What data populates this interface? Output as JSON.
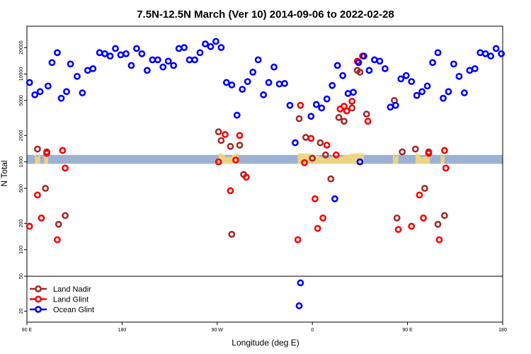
{
  "chart_data": {
    "type": "scatter",
    "title": "7.5N-12.5N March (Ver 10)   2014-09-06 to 2022-02-28",
    "xlabel": "Longitude (deg E)",
    "ylabel": "N Total",
    "y_scale": "log",
    "ylim": [
      15,
      35000
    ],
    "xlim": [
      0,
      360
    ],
    "x_ticks": [
      {
        "pos": 0,
        "label": "90 E"
      },
      {
        "pos": 72,
        "label": "180"
      },
      {
        "pos": 144,
        "label": "90 W"
      },
      {
        "pos": 216,
        "label": "0"
      },
      {
        "pos": 288,
        "label": "90 E"
      },
      {
        "pos": 360,
        "label": "180"
      }
    ],
    "y_ticks": [
      20,
      50,
      100,
      200,
      500,
      1000,
      2000,
      5000,
      10000,
      20000
    ],
    "legend_position": "bottom-left",
    "series": [
      {
        "name": "Land Nadir",
        "color": "#a52a2a",
        "points": [
          [
            8,
            1400
          ],
          [
            14,
            500
          ],
          [
            15,
            1300
          ],
          [
            24,
            195
          ],
          [
            29,
            245
          ],
          [
            145,
            2200
          ],
          [
            147,
            1750
          ],
          [
            154,
            1500
          ],
          [
            155,
            150
          ],
          [
            161,
            1550
          ],
          [
            164,
            720
          ],
          [
            206,
            3100
          ],
          [
            211,
            1900
          ],
          [
            216,
            1100
          ],
          [
            222,
            1650
          ],
          [
            226,
            1200
          ],
          [
            230,
            640
          ],
          [
            236,
            3200
          ],
          [
            240,
            2900
          ],
          [
            246,
            4100
          ],
          [
            250,
            11000
          ],
          [
            252,
            10500
          ],
          [
            257,
            3500
          ],
          [
            278,
            5000
          ],
          [
            280,
            230
          ],
          [
            284,
            1300
          ],
          [
            294,
            1400
          ],
          [
            301,
            500
          ],
          [
            304,
            1300
          ],
          [
            311,
            195
          ],
          [
            316,
            245
          ]
        ]
      },
      {
        "name": "Land Glint",
        "color": "#ff0000",
        "points": [
          [
            2,
            185
          ],
          [
            8,
            420
          ],
          [
            11,
            230
          ],
          [
            15,
            1250
          ],
          [
            23,
            130
          ],
          [
            27,
            1350
          ],
          [
            29,
            850
          ],
          [
            145,
            1000
          ],
          [
            150,
            2050
          ],
          [
            154,
            470
          ],
          [
            158,
            1050
          ],
          [
            161,
            2000
          ],
          [
            166,
            670
          ],
          [
            205,
            130
          ],
          [
            207,
            4400
          ],
          [
            210,
            980
          ],
          [
            215,
            1850
          ],
          [
            218,
            380
          ],
          [
            220,
            175
          ],
          [
            224,
            230
          ],
          [
            227,
            1550
          ],
          [
            234,
            1200
          ],
          [
            237,
            4000
          ],
          [
            240,
            4300
          ],
          [
            242,
            3800
          ],
          [
            246,
            4900
          ],
          [
            250,
            14000
          ],
          [
            254,
            16000
          ],
          [
            258,
            2900
          ],
          [
            281,
            170
          ],
          [
            291,
            185
          ],
          [
            297,
            420
          ],
          [
            300,
            230
          ],
          [
            304,
            1250
          ],
          [
            312,
            130
          ],
          [
            316,
            1350
          ],
          [
            317,
            850
          ]
        ]
      },
      {
        "name": "Ocean Glint",
        "color": "#0000ff",
        "points": [
          [
            2,
            8000
          ],
          [
            6,
            5800
          ],
          [
            10,
            6300
          ],
          [
            16,
            7300
          ],
          [
            19,
            13500
          ],
          [
            23,
            17500
          ],
          [
            26,
            5300
          ],
          [
            30,
            6300
          ],
          [
            33,
            13000
          ],
          [
            38,
            9400
          ],
          [
            42,
            6100
          ],
          [
            46,
            11000
          ],
          [
            50,
            11500
          ],
          [
            55,
            17500
          ],
          [
            59,
            17000
          ],
          [
            63,
            16000
          ],
          [
            67,
            19500
          ],
          [
            71,
            16500
          ],
          [
            75,
            17000
          ],
          [
            79,
            12500
          ],
          [
            83,
            19500
          ],
          [
            87,
            17000
          ],
          [
            91,
            11000
          ],
          [
            95,
            14500
          ],
          [
            99,
            14500
          ],
          [
            103,
            12000
          ],
          [
            107,
            14000
          ],
          [
            111,
            12500
          ],
          [
            115,
            19500
          ],
          [
            119,
            20000
          ],
          [
            123,
            14500
          ],
          [
            127,
            14500
          ],
          [
            131,
            17500
          ],
          [
            135,
            22000
          ],
          [
            139,
            20500
          ],
          [
            143,
            23500
          ],
          [
            147,
            20000
          ],
          [
            151,
            8000
          ],
          [
            155,
            7500
          ],
          [
            159,
            3400
          ],
          [
            163,
            6700
          ],
          [
            167,
            8200
          ],
          [
            171,
            10500
          ],
          [
            175,
            14500
          ],
          [
            179,
            5800
          ],
          [
            183,
            8000
          ],
          [
            187,
            12000
          ],
          [
            191,
            7700
          ],
          [
            195,
            7800
          ],
          [
            199,
            4400
          ],
          [
            203,
            1650
          ],
          [
            207,
            42
          ],
          [
            215,
            3300
          ],
          [
            219,
            4500
          ],
          [
            223,
            4100
          ],
          [
            227,
            5200
          ],
          [
            231,
            7400
          ],
          [
            235,
            12500
          ],
          [
            239,
            9600
          ],
          [
            243,
            6000
          ],
          [
            247,
            6200
          ],
          [
            251,
            13500
          ],
          [
            255,
            16000
          ],
          [
            259,
            11000
          ],
          [
            263,
            14500
          ],
          [
            267,
            14000
          ],
          [
            271,
            11500
          ],
          [
            275,
            4200
          ],
          [
            279,
            4400
          ],
          [
            283,
            8800
          ],
          [
            287,
            9600
          ],
          [
            291,
            8200
          ],
          [
            295,
            5700
          ],
          [
            299,
            6300
          ],
          [
            303,
            7300
          ],
          [
            307,
            13500
          ],
          [
            311,
            17500
          ],
          [
            315,
            5300
          ],
          [
            319,
            6300
          ],
          [
            323,
            13000
          ],
          [
            327,
            9400
          ],
          [
            331,
            6100
          ],
          [
            335,
            11000
          ],
          [
            339,
            11500
          ],
          [
            343,
            17500
          ],
          [
            347,
            17000
          ],
          [
            351,
            16000
          ],
          [
            355,
            19500
          ],
          [
            359,
            17000
          ],
          [
            206,
            23
          ],
          [
            233,
            380
          ],
          [
            252,
            1000
          ]
        ]
      }
    ],
    "reference_band": {
      "name": "N=1000 reference band",
      "y_low": 950,
      "y_high": 1200,
      "color": "#9db2d2"
    },
    "bump_color": "#f5d77c",
    "bump_ranges": [
      [
        6,
        10
      ],
      [
        13,
        16
      ],
      [
        145,
        160
      ],
      [
        205,
        255
      ],
      [
        277,
        281
      ],
      [
        294,
        305
      ],
      [
        313,
        316
      ]
    ]
  }
}
